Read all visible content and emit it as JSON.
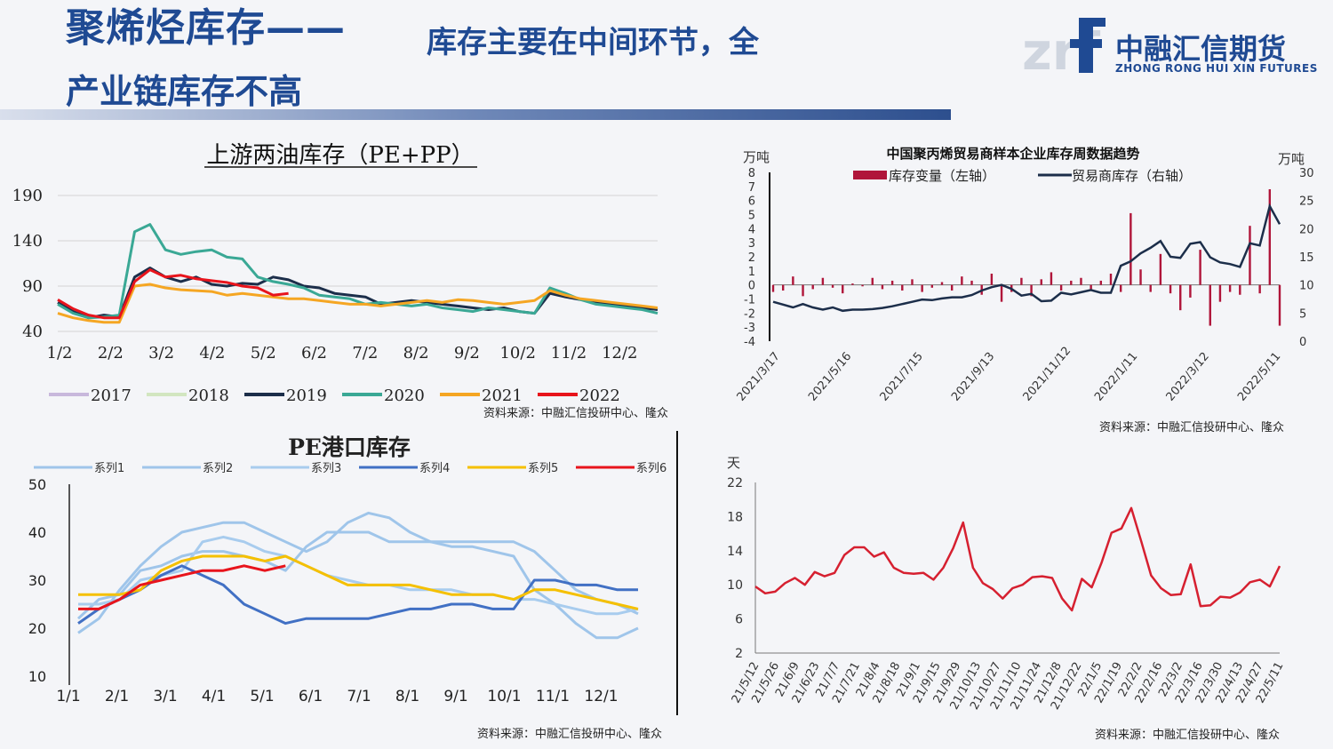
{
  "header": {
    "title_main": "聚烯烃库存——",
    "title_rest": "库存主要在中间环节，全",
    "title_line2": "产业链库存不高",
    "logo_cn": "中融汇信期货",
    "logo_en": "ZHONG RONG HUI XIN FUTURES",
    "logo_mark": "zrf"
  },
  "chart_data": [
    {
      "type": "line",
      "title": "上游两油库存（PE+PP）",
      "ylim": [
        40,
        190
      ],
      "yticks": [
        "190",
        "140",
        "90",
        "40"
      ],
      "xticks": [
        "1/2",
        "2/2",
        "3/2",
        "4/2",
        "5/2",
        "6/2",
        "7/2",
        "8/2",
        "9/2",
        "10/2",
        "11/2",
        "12/2"
      ],
      "series": [
        {
          "name": "2017",
          "color": "#c8b8dc",
          "values": []
        },
        {
          "name": "2018",
          "color": "#d2e6c0",
          "values": []
        },
        {
          "name": "2019",
          "color": "#1c2e4a",
          "values": [
            72,
            62,
            55,
            58,
            56,
            100,
            110,
            100,
            95,
            100,
            92,
            90,
            93,
            92,
            100,
            97,
            90,
            88,
            82,
            80,
            78,
            70,
            72,
            74,
            72,
            70,
            68,
            66,
            64,
            66,
            62,
            60,
            82,
            78,
            75,
            72,
            70,
            68,
            66,
            64
          ]
        },
        {
          "name": "2020",
          "color": "#3aa895",
          "values": [
            70,
            60,
            55,
            56,
            58,
            150,
            158,
            130,
            125,
            128,
            130,
            122,
            120,
            100,
            95,
            92,
            88,
            80,
            78,
            76,
            70,
            72,
            70,
            68,
            70,
            66,
            64,
            62,
            66,
            64,
            62,
            60,
            88,
            82,
            75,
            70,
            68,
            66,
            64,
            60
          ]
        },
        {
          "name": "2021",
          "color": "#f5a623",
          "values": [
            60,
            55,
            52,
            50,
            50,
            90,
            92,
            88,
            86,
            85,
            84,
            80,
            82,
            80,
            78,
            76,
            76,
            74,
            72,
            70,
            70,
            68,
            70,
            72,
            74,
            72,
            75,
            74,
            72,
            70,
            72,
            74,
            85,
            80,
            76,
            74,
            72,
            70,
            68,
            66
          ]
        },
        {
          "name": "2022",
          "color": "#e8141c",
          "values": [
            75,
            65,
            58,
            55,
            55,
            95,
            108,
            100,
            102,
            98,
            96,
            94,
            90,
            88,
            80,
            82
          ]
        }
      ],
      "source": "资料来源：中融汇信投研中心、隆众"
    },
    {
      "type": "bar+line",
      "title": "中国聚丙烯贸易商样本企业库存周数据趋势",
      "ylabel_left": "万吨",
      "ylabel_right": "万吨",
      "yticks_left": [
        "8",
        "7",
        "6",
        "5",
        "4",
        "3",
        "2",
        "1",
        "0",
        "-1",
        "-2",
        "-3",
        "-4"
      ],
      "yticks_right": [
        "30",
        "25",
        "20",
        "15",
        "10",
        "5",
        "0"
      ],
      "xticks": [
        "2021/3/17",
        "2021/5/16",
        "2021/7/15",
        "2021/9/13",
        "2021/11/12",
        "2022/1/11",
        "2022/3/12",
        "2022/5/11"
      ],
      "series": [
        {
          "name": "库存变量（左轴）",
          "color": "#b0153a",
          "values": [
            -0.5,
            -0.4,
            0.6,
            -0.8,
            -0.3,
            0.5,
            -0.2,
            -0.6,
            0.1,
            -0.1,
            0.5,
            -0.3,
            0.3,
            -0.4,
            0.4,
            -0.5,
            -0.2,
            0.2,
            -0.4,
            0.6,
            0.3,
            -0.7,
            0.8,
            -1.2,
            -0.5,
            0.5,
            -0.8,
            0.4,
            0.9,
            -0.4,
            0.3,
            0.5,
            -0.3,
            0.3,
            0.8,
            -0.5,
            5.1,
            1.1,
            -0.5,
            2.2,
            -0.6,
            -1.8,
            -0.9,
            2.5,
            -2.9,
            -1.2,
            -0.5,
            -0.7,
            4.2,
            -0.6,
            6.8,
            -2.9
          ]
        },
        {
          "name": "贸易商库存（右轴）",
          "color": "#1c2e4a",
          "values": [
            7,
            6.5,
            6,
            6.6,
            6,
            5.6,
            6,
            5.4,
            5.6,
            5.6,
            5.7,
            5.9,
            6.2,
            6.6,
            7,
            7.4,
            7.3,
            7.6,
            7.8,
            7.8,
            8.2,
            9,
            9.6,
            10,
            9.3,
            8.1,
            8.4,
            7.1,
            7.2,
            8.6,
            8.3,
            8.7,
            9.1,
            8.6,
            8.6,
            13.4,
            14.2,
            15.6,
            16.6,
            17.8,
            15,
            14.8,
            17.3,
            17.6,
            14.9,
            14,
            13.7,
            13.2,
            17.4,
            17,
            24,
            20.8
          ]
        }
      ],
      "source": "资料来源：中融汇信投研中心、隆众"
    },
    {
      "type": "line",
      "title": "PE港口库存",
      "ylim": [
        10,
        50
      ],
      "yticks": [
        "50",
        "40",
        "30",
        "20",
        "10"
      ],
      "xticks": [
        "1/1",
        "2/1",
        "3/1",
        "4/1",
        "5/1",
        "6/1",
        "7/1",
        "8/1",
        "9/1",
        "10/1",
        "11/1",
        "12/1"
      ],
      "series": [
        {
          "name": "系列1",
          "color": "#9fc5ea",
          "values": [
            19,
            22,
            28,
            33,
            37,
            40,
            41,
            42,
            42,
            40,
            38,
            36,
            38,
            42,
            44,
            43,
            40,
            38,
            37,
            37,
            36,
            35,
            28,
            25,
            21,
            18,
            18,
            20
          ]
        },
        {
          "name": "系列2",
          "color": "#9fc5ea",
          "values": [
            22,
            26,
            27,
            32,
            33,
            35,
            36,
            36,
            35,
            34,
            32,
            37,
            40,
            40,
            40,
            38,
            38,
            38,
            38,
            38,
            38,
            38,
            36,
            32,
            28,
            26,
            25,
            23
          ]
        },
        {
          "name": "系列3",
          "color": "#a8ccee",
          "values": [
            25,
            25,
            26,
            30,
            31,
            32,
            38,
            39,
            38,
            36,
            35,
            33,
            31,
            30,
            29,
            29,
            28,
            28,
            28,
            27,
            27,
            26,
            26,
            25,
            24,
            23,
            23,
            24
          ]
        },
        {
          "name": "系列4",
          "color": "#4170c4",
          "values": [
            21,
            24,
            26,
            28,
            31,
            33,
            31,
            29,
            25,
            23,
            21,
            22,
            22,
            22,
            22,
            23,
            24,
            24,
            25,
            25,
            24,
            24,
            30,
            30,
            29,
            29,
            28,
            28
          ]
        },
        {
          "name": "系列5",
          "color": "#f5c000",
          "values": [
            27,
            27,
            27,
            28,
            32,
            34,
            35,
            35,
            35,
            34,
            35,
            33,
            31,
            29,
            29,
            29,
            29,
            28,
            27,
            27,
            27,
            26,
            28,
            28,
            27,
            26,
            25,
            24
          ]
        },
        {
          "name": "系列6",
          "color": "#e8141c",
          "values": [
            24,
            24,
            26,
            29,
            30,
            31,
            32,
            32,
            33,
            32,
            33
          ]
        }
      ],
      "source": "资料来源：中融汇信投研中心、隆众"
    },
    {
      "type": "line",
      "title": "",
      "ylabel": "天",
      "ylim": [
        2,
        22
      ],
      "yticks": [
        "22",
        "18",
        "14",
        "10",
        "6",
        "2"
      ],
      "xticks": [
        "21/5/12",
        "21/5/26",
        "21/6/9",
        "21/6/23",
        "21/7/7",
        "21/7/21",
        "21/8/4",
        "21/8/18",
        "21/9/1",
        "21/9/15",
        "21/9/29",
        "21/10/13",
        "21/10/27",
        "21/11/10",
        "21/11/24",
        "21/12/8",
        "21/12/22",
        "22/1/5",
        "22/1/19",
        "22/2/2",
        "22/2/16",
        "22/3/2",
        "22/3/16",
        "22/3/30",
        "22/4/13",
        "22/4/27",
        "22/5/11"
      ],
      "series": [
        {
          "name": "",
          "color": "#d62030",
          "values": [
            9.8,
            9,
            9.2,
            10.2,
            10.8,
            10,
            11.5,
            11,
            11.4,
            13.5,
            14.4,
            14.4,
            13.3,
            13.8,
            12,
            11.4,
            11.3,
            11.4,
            10.6,
            12,
            14.3,
            17.3,
            12,
            10.2,
            9.5,
            8.4,
            9.6,
            10,
            10.9,
            11,
            10.8,
            8.4,
            7,
            10.7,
            9.7,
            12.6,
            16.1,
            16.6,
            19,
            15.1,
            11.1,
            9.6,
            8.8,
            8.9,
            12.4,
            7.5,
            7.6,
            8.6,
            8.5,
            9.1,
            10.3,
            10.6,
            9.8,
            12.2
          ]
        }
      ],
      "source": "资料来源：中融汇信投研中心、隆众"
    }
  ]
}
